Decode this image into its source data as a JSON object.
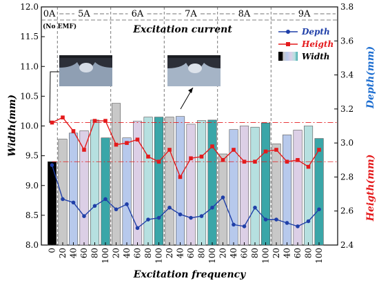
{
  "chart_data": {
    "type": "bar",
    "title": "Excitation current",
    "xlabel": "Excitation frequency",
    "ylabel_left": "Width(mm)",
    "ylabel_right_top": "Depth(mm)",
    "ylabel_right_bottom": "Heigth(mm)",
    "ylim_left": [
      8.0,
      12.0
    ],
    "yticks_left": [
      "8.0",
      "8.5",
      "9.0",
      "9.5",
      "10.0",
      "10.5",
      "11.0",
      "11.5",
      "12.0"
    ],
    "ylim_right": [
      2.4,
      3.8
    ],
    "yticks_right": [
      "2.4",
      "2.6",
      "2.8",
      "3.0",
      "3.2",
      "3.4",
      "3.6",
      "3.8"
    ],
    "x_labels": [
      "0",
      "20",
      "40",
      "60",
      "80",
      "100",
      "20",
      "40",
      "60",
      "80",
      "100",
      "20",
      "40",
      "60",
      "80",
      "100",
      "20",
      "40",
      "60",
      "80",
      "100",
      "20",
      "40",
      "60",
      "80",
      "100"
    ],
    "groups": [
      {
        "label": "0A",
        "sublabel": "(No EMF)",
        "count": 1
      },
      {
        "label": "5A",
        "count": 5
      },
      {
        "label": "6A",
        "count": 5
      },
      {
        "label": "7A",
        "count": 5
      },
      {
        "label": "8A",
        "count": 5
      },
      {
        "label": "9A",
        "count": 5
      }
    ],
    "series": [
      {
        "name": "Width",
        "axis": "left",
        "kind": "bar",
        "values": [
          9.4,
          9.78,
          9.88,
          9.92,
          10.1,
          9.8,
          10.38,
          9.8,
          10.08,
          10.15,
          10.15,
          10.15,
          10.16,
          10.03,
          10.09,
          10.1,
          9.53,
          9.94,
          10.0,
          9.98,
          10.05,
          9.7,
          9.85,
          9.93,
          10.0,
          9.79
        ]
      },
      {
        "name": "Depth",
        "axis": "right",
        "kind": "line",
        "color": "#1f3fa8",
        "values": [
          2.87,
          2.67,
          2.65,
          2.57,
          2.63,
          2.67,
          2.61,
          2.64,
          2.5,
          2.55,
          2.56,
          2.62,
          2.58,
          2.56,
          2.57,
          2.62,
          2.68,
          2.52,
          2.51,
          2.62,
          2.55,
          2.55,
          2.53,
          2.51,
          2.54,
          2.61
        ]
      },
      {
        "name": "Heigth",
        "axis": "right",
        "kind": "line",
        "color": "#e41a1c",
        "values": [
          3.12,
          3.15,
          3.07,
          2.96,
          3.13,
          3.13,
          2.99,
          3.0,
          3.02,
          2.92,
          2.89,
          2.96,
          2.8,
          2.91,
          2.92,
          2.98,
          2.9,
          2.96,
          2.89,
          2.89,
          2.95,
          2.96,
          2.89,
          2.9,
          2.86,
          2.96
        ]
      }
    ],
    "bar_colors": [
      "#000000",
      "#c8c8c8",
      "#b7c9ec",
      "#dccfe6",
      "#b6e0e0",
      "#3aa6a8"
    ],
    "legend": [
      "Depth",
      "Heigth",
      "Width"
    ],
    "legend_position": "top-right"
  }
}
